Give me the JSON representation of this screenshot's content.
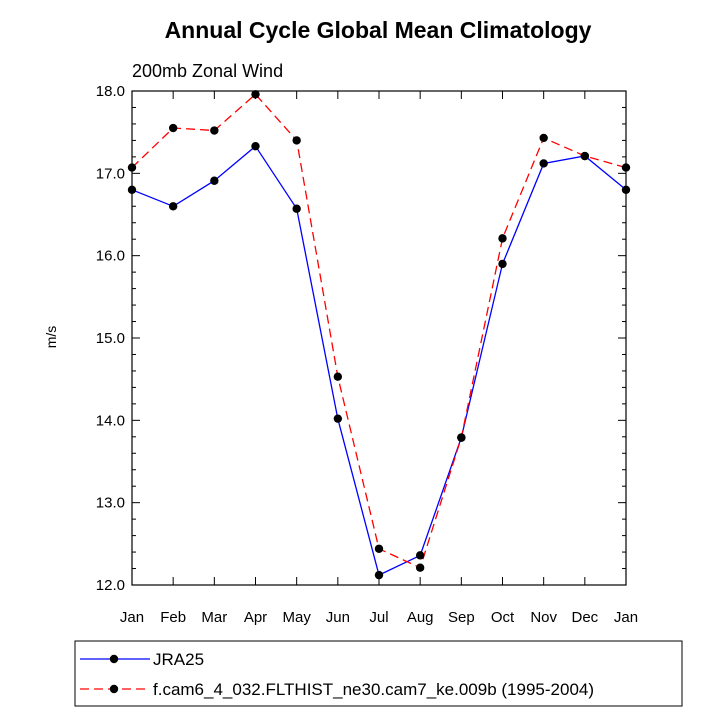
{
  "chart_data": {
    "type": "line",
    "title": "Annual Cycle Global Mean Climatology",
    "subtitle": "200mb Zonal Wind",
    "xlabel": "",
    "ylabel": "m/s",
    "ylim": [
      12.0,
      18.0
    ],
    "yticks": [
      "12.0",
      "13.0",
      "14.0",
      "15.0",
      "16.0",
      "17.0",
      "18.0"
    ],
    "categories": [
      "Jan",
      "Feb",
      "Mar",
      "Apr",
      "May",
      "Jun",
      "Jul",
      "Aug",
      "Sep",
      "Oct",
      "Nov",
      "Dec",
      "Jan"
    ],
    "grid": false,
    "legend_position": "bottom",
    "series": [
      {
        "name": "JRA25",
        "color": "#0000ff",
        "dash": "solid",
        "values": [
          16.8,
          16.6,
          16.91,
          17.33,
          16.57,
          14.02,
          12.12,
          12.36,
          13.79,
          15.9,
          17.12,
          17.21,
          16.8
        ]
      },
      {
        "name": "f.cam6_4_032.FLTHIST_ne30.cam7_ke.009b (1995-2004)",
        "color": "#ff0000",
        "dash": "dashed",
        "values": [
          17.07,
          17.55,
          17.52,
          17.96,
          17.4,
          14.53,
          12.44,
          12.21,
          13.79,
          16.21,
          17.43,
          17.21,
          17.07
        ]
      }
    ]
  }
}
